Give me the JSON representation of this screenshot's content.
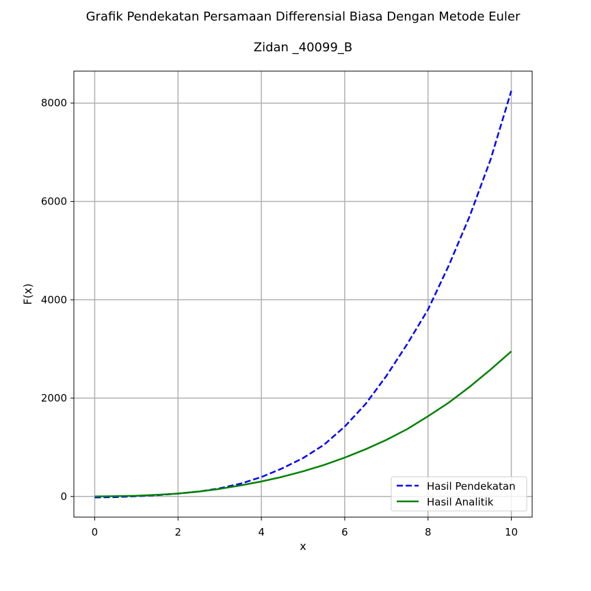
{
  "chart_data": {
    "type": "line",
    "title": "Grafik Pendekatan Persamaan Differensial Biasa Dengan Metode Euler",
    "subtitle": "Zidan _40099_B",
    "xlabel": "x",
    "ylabel": "F(x)",
    "xlim": [
      -0.5,
      10.5
    ],
    "ylim": [
      -420,
      8650
    ],
    "xticks": [
      0,
      2,
      4,
      6,
      8,
      10
    ],
    "xtick_labels": [
      "0",
      "2",
      "4",
      "6",
      "8",
      "10"
    ],
    "yticks": [
      0,
      2000,
      4000,
      6000,
      8000
    ],
    "ytick_labels": [
      "0",
      "2000",
      "4000",
      "6000",
      "8000"
    ],
    "grid": true,
    "legend_position": "lower-right",
    "series": [
      {
        "name": "Hasil Pendekatan",
        "color": "#0000ff",
        "style": "dashed",
        "x": [
          0,
          0.5,
          1,
          1.5,
          2,
          2.5,
          3,
          3.5,
          4,
          4.5,
          5,
          5.5,
          6,
          6.5,
          7,
          7.5,
          8,
          8.5,
          9,
          9.5,
          10
        ],
        "y": [
          -20,
          -14,
          5,
          27,
          58,
          100,
          165,
          260,
          395,
          570,
          780,
          1050,
          1420,
          1880,
          2450,
          3100,
          3800,
          4700,
          5700,
          6850,
          8250
        ]
      },
      {
        "name": "Hasil Analitik",
        "color": "#008000",
        "style": "solid",
        "x": [
          0,
          0.5,
          1,
          1.5,
          2,
          2.5,
          3,
          3.5,
          4,
          4.5,
          5,
          5.5,
          6,
          6.5,
          7,
          7.5,
          8,
          8.5,
          9,
          9.5,
          10
        ],
        "y": [
          0,
          6,
          16,
          33,
          60,
          100,
          155,
          225,
          305,
          400,
          510,
          640,
          790,
          960,
          1150,
          1370,
          1630,
          1910,
          2230,
          2580,
          2950
        ]
      }
    ]
  }
}
